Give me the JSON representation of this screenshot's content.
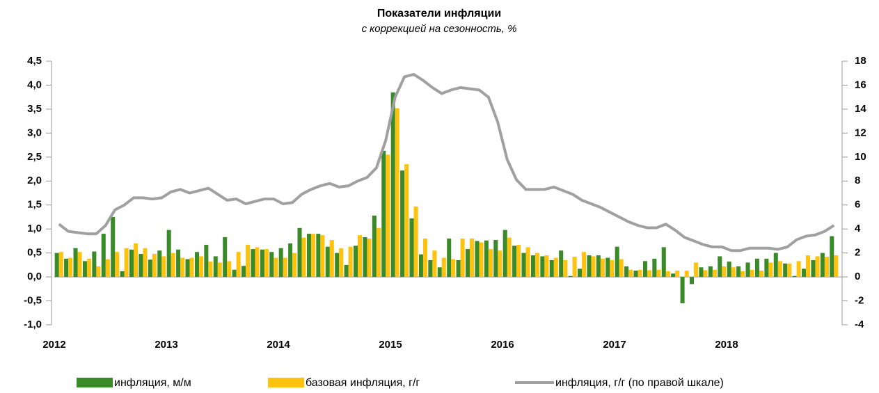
{
  "chart_data": {
    "type": "bar_line",
    "title": "Показатели инфляции",
    "subtitle": "с коррекцией на сезонность, %",
    "categories": [
      "2012",
      null,
      null,
      null,
      null,
      null,
      null,
      null,
      null,
      null,
      null,
      null,
      "2013",
      null,
      null,
      null,
      null,
      null,
      null,
      null,
      null,
      null,
      null,
      null,
      "2014",
      null,
      null,
      null,
      null,
      null,
      null,
      null,
      null,
      null,
      null,
      null,
      "2015",
      null,
      null,
      null,
      null,
      null,
      null,
      null,
      null,
      null,
      null,
      null,
      "2016",
      null,
      null,
      null,
      null,
      null,
      null,
      null,
      null,
      null,
      null,
      null,
      "2017",
      null,
      null,
      null,
      null,
      null,
      null,
      null,
      null,
      null,
      null,
      null,
      "2018",
      null,
      null,
      null,
      null,
      null,
      null,
      null,
      null,
      null,
      null,
      null
    ],
    "series": [
      {
        "name": "инфляция, м/м",
        "color": "#3a8a2a",
        "kind": "bar",
        "axis": "y",
        "values": [
          0.5,
          0.38,
          0.6,
          0.33,
          0.53,
          0.9,
          1.25,
          0.12,
          0.57,
          0.48,
          0.36,
          0.55,
          0.98,
          0.57,
          0.37,
          0.52,
          0.67,
          0.43,
          0.83,
          0.15,
          0.23,
          0.58,
          0.57,
          0.52,
          0.6,
          0.7,
          1.02,
          0.9,
          0.9,
          0.63,
          0.5,
          0.25,
          0.65,
          0.83,
          1.28,
          2.63,
          3.85,
          2.22,
          1.22,
          0.47,
          0.35,
          0.2,
          0.8,
          0.35,
          0.58,
          0.75,
          0.76,
          0.77,
          0.98,
          0.65,
          0.5,
          0.45,
          0.43,
          0.35,
          0.55,
          0.02,
          0.17,
          0.45,
          0.45,
          0.4,
          0.63,
          0.22,
          0.13,
          0.33,
          0.38,
          0.62,
          0.07,
          -0.55,
          -0.15,
          0.2,
          0.22,
          0.43,
          0.32,
          0.22,
          0.3,
          0.38,
          0.38,
          0.5,
          0.28,
          0.02,
          0.17,
          0.35,
          0.5,
          0.85
        ]
      },
      {
        "name": "базовая инфляция, г/г",
        "color": "#ffc20e",
        "kind": "bar",
        "axis": "y",
        "values": [
          0.52,
          0.4,
          0.52,
          0.38,
          0.22,
          0.37,
          0.52,
          0.6,
          0.7,
          0.6,
          0.48,
          0.43,
          0.5,
          0.4,
          0.4,
          0.43,
          0.32,
          0.3,
          0.33,
          0.52,
          0.67,
          0.62,
          0.58,
          0.4,
          0.4,
          0.5,
          0.82,
          0.9,
          0.87,
          0.77,
          0.6,
          0.63,
          0.87,
          0.8,
          1.02,
          2.55,
          3.52,
          2.35,
          1.47,
          0.8,
          0.55,
          0.4,
          0.37,
          0.8,
          0.8,
          0.72,
          0.58,
          0.55,
          0.82,
          0.67,
          0.62,
          0.5,
          0.45,
          0.4,
          0.35,
          0.42,
          0.52,
          0.43,
          0.38,
          0.35,
          0.37,
          0.15,
          0.15,
          0.14,
          0.15,
          0.12,
          0.13,
          0.13,
          0.3,
          0.14,
          0.15,
          0.22,
          0.2,
          0.12,
          0.15,
          0.13,
          0.3,
          0.33,
          0.28,
          0.33,
          0.45,
          0.43,
          0.42,
          0.45
        ]
      },
      {
        "name": "инфляция, г/г (по правой шкале)",
        "color": "#a0a0a0",
        "kind": "line",
        "axis": "y2",
        "values": [
          4.4,
          3.8,
          3.7,
          3.6,
          3.6,
          4.3,
          5.6,
          6.0,
          6.6,
          6.6,
          6.5,
          6.6,
          7.1,
          7.3,
          7.0,
          7.2,
          7.4,
          6.9,
          6.4,
          6.5,
          6.1,
          6.3,
          6.5,
          6.5,
          6.1,
          6.2,
          6.9,
          7.3,
          7.6,
          7.8,
          7.5,
          7.6,
          8.0,
          8.3,
          9.1,
          11.4,
          15.0,
          16.7,
          16.9,
          16.4,
          15.8,
          15.3,
          15.6,
          15.8,
          15.7,
          15.6,
          15.0,
          12.9,
          9.8,
          8.1,
          7.3,
          7.3,
          7.3,
          7.5,
          7.2,
          6.9,
          6.4,
          6.1,
          5.8,
          5.4,
          5.0,
          4.6,
          4.3,
          4.1,
          4.1,
          4.4,
          3.9,
          3.3,
          3.0,
          2.7,
          2.5,
          2.5,
          2.2,
          2.2,
          2.4,
          2.4,
          2.4,
          2.3,
          2.5,
          3.1,
          3.4,
          3.5,
          3.8,
          4.3
        ]
      }
    ],
    "ylim": [
      -1.0,
      4.5
    ],
    "yticks": [
      {
        "value": -1.0,
        "label": "-1,0"
      },
      {
        "value": -0.5,
        "label": "-0,5"
      },
      {
        "value": 0.0,
        "label": "0,0"
      },
      {
        "value": 0.5,
        "label": "0,5"
      },
      {
        "value": 1.0,
        "label": "1,0"
      },
      {
        "value": 1.5,
        "label": "1,5"
      },
      {
        "value": 2.0,
        "label": "2,0"
      },
      {
        "value": 2.5,
        "label": "2,5"
      },
      {
        "value": 3.0,
        "label": "3,0"
      },
      {
        "value": 3.5,
        "label": "3,5"
      },
      {
        "value": 4.0,
        "label": "4,0"
      },
      {
        "value": 4.5,
        "label": "4,5"
      }
    ],
    "y2lim": [
      -4,
      18
    ],
    "y2ticks": [
      -4,
      -2,
      0,
      2,
      4,
      6,
      8,
      10,
      12,
      14,
      16,
      18
    ],
    "legend": "bottom"
  }
}
